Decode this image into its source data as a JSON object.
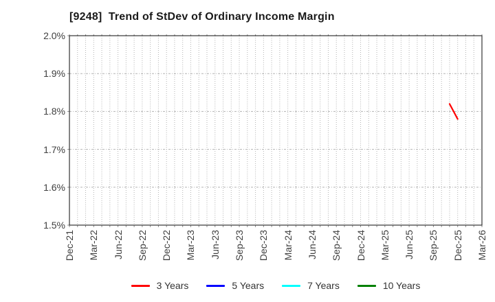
{
  "title": "[9248]  Trend of StDev of Ordinary Income Margin",
  "chart_data": {
    "type": "line",
    "title": "[9248]  Trend of StDev of Ordinary Income Margin",
    "x_axis": {
      "tick_labels": [
        "Dec-21",
        "Mar-22",
        "Jun-22",
        "Sep-22",
        "Dec-22",
        "Mar-23",
        "Jun-23",
        "Sep-23",
        "Dec-23",
        "Mar-24",
        "Jun-24",
        "Sep-24",
        "Dec-24",
        "Mar-25",
        "Jun-25",
        "Sep-25",
        "Dec-25",
        "Mar-26"
      ],
      "months_per_tick": 3,
      "total_months": 51,
      "minor_grid": "monthly"
    },
    "y_axis": {
      "min": 1.5,
      "max": 2.0,
      "step": 0.1,
      "unit": "%",
      "tick_labels": [
        "2.0%",
        "1.9%",
        "1.8%",
        "1.7%",
        "1.6%",
        "1.5%"
      ]
    },
    "grid": true,
    "legend_position": "bottom",
    "series": [
      {
        "name": "3 Years",
        "color": "#ff0000",
        "points": [
          {
            "x_label": "Nov-25",
            "month_index": 47,
            "value": 1.82
          },
          {
            "x_label": "Dec-25",
            "month_index": 48,
            "value": 1.78
          }
        ]
      },
      {
        "name": "5 Years",
        "color": "#0000ff",
        "points": []
      },
      {
        "name": "7 Years",
        "color": "#00ffff",
        "points": []
      },
      {
        "name": "10 Years",
        "color": "#008000",
        "points": []
      }
    ]
  },
  "colors": {
    "spine": "#333333",
    "grid": "#b3b3b3",
    "tick": "#8c8c8c",
    "tick_text": "#404040",
    "title_text": "#1a1a1a",
    "background": "#ffffff"
  }
}
